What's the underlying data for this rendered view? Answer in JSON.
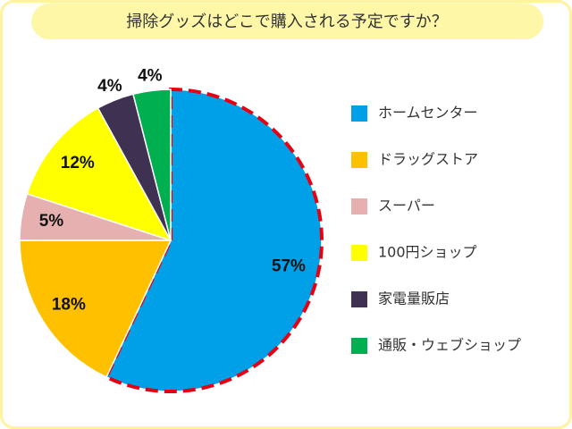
{
  "chart_data": {
    "type": "pie",
    "title": "掃除グッズはどこで購入される予定ですか？",
    "categories": [
      "ホームセンター",
      "ドラッグストア",
      "スーパー",
      "100円ショップ",
      "家電量販店",
      "通販・ウェブショップ"
    ],
    "values": [
      57,
      18,
      5,
      12,
      4,
      4
    ],
    "value_labels": [
      "57%",
      "18%",
      "5%",
      "12%",
      "4%",
      "4%"
    ],
    "colors": [
      "#00a0e9",
      "#ffc000",
      "#e6b0b0",
      "#ffff00",
      "#3f3151",
      "#00b050"
    ]
  }
}
